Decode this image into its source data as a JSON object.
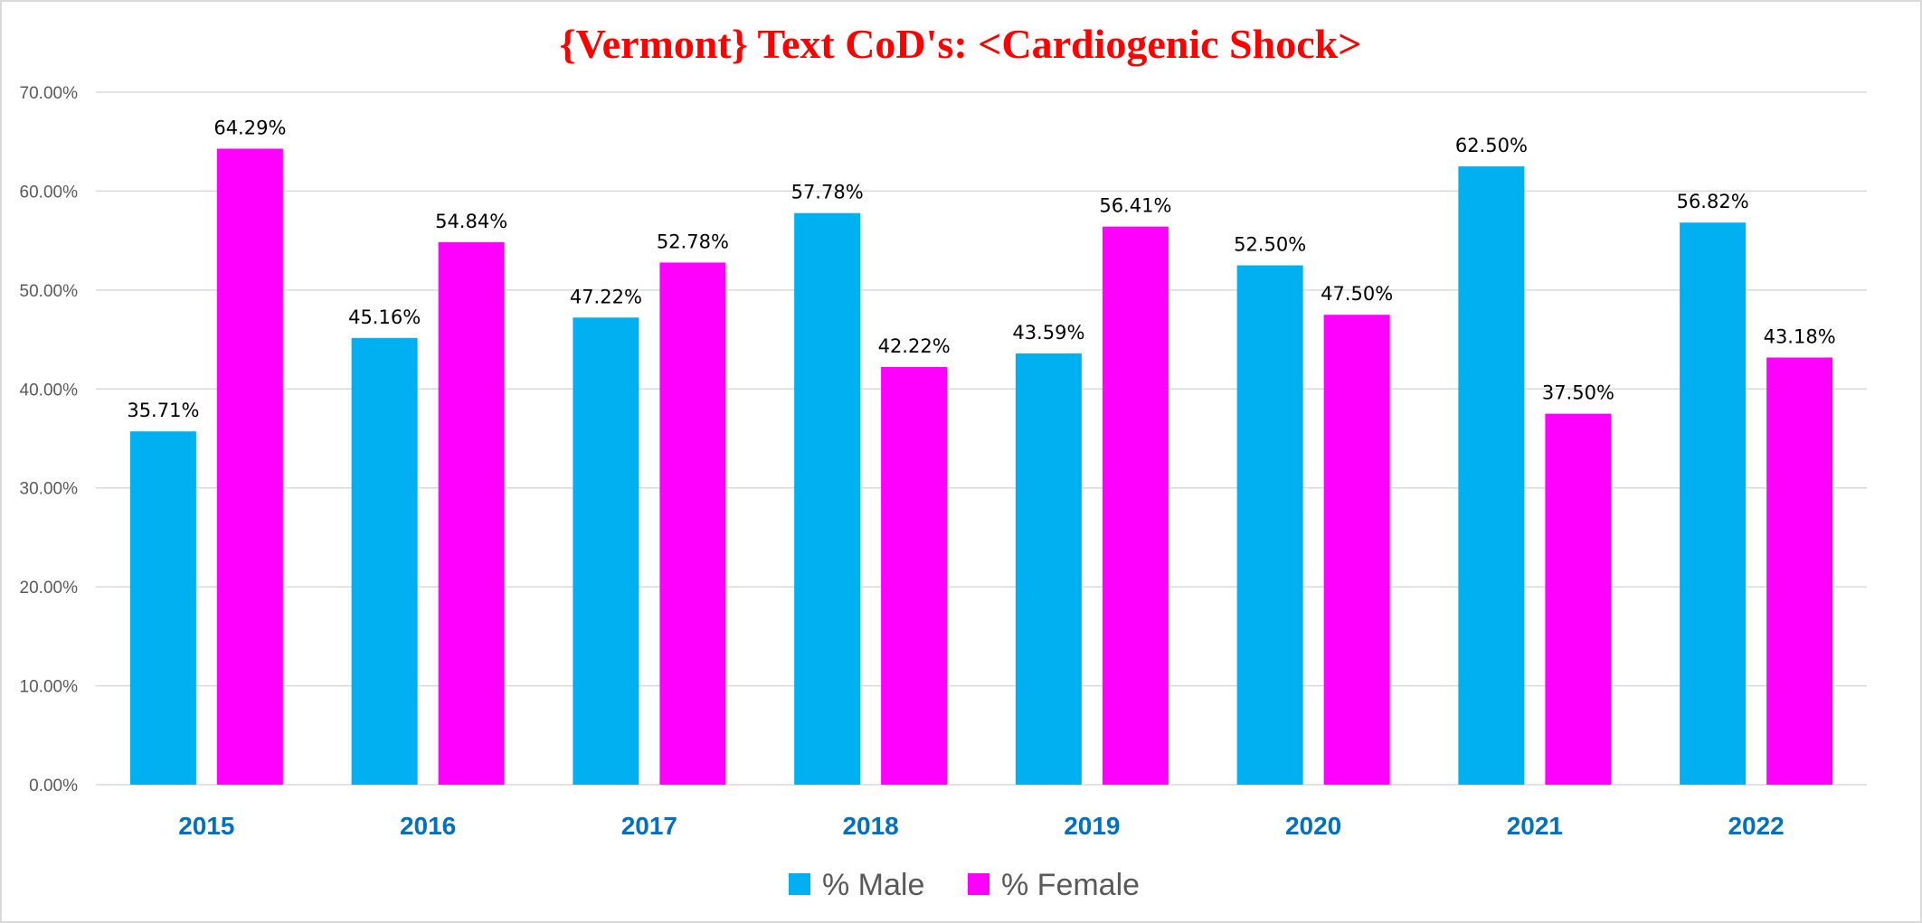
{
  "chart_data": {
    "type": "bar",
    "title": "{Vermont}  Text CoD's: <Cardiogenic Shock>",
    "xlabel": "",
    "ylabel": "",
    "categories": [
      "2015",
      "2016",
      "2017",
      "2018",
      "2019",
      "2020",
      "2021",
      "2022"
    ],
    "series": [
      {
        "name": "% Male",
        "color": "#00b0f0",
        "values": [
          35.71,
          45.16,
          47.22,
          57.78,
          43.59,
          52.5,
          62.5,
          56.82
        ],
        "labels": [
          "35.71%",
          "45.16%",
          "47.22%",
          "57.78%",
          "43.59%",
          "52.50%",
          "62.50%",
          "56.82%"
        ]
      },
      {
        "name": "% Female",
        "color": "#ff00ff",
        "values": [
          64.29,
          54.84,
          52.78,
          42.22,
          56.41,
          47.5,
          37.5,
          43.18
        ],
        "labels": [
          "64.29%",
          "54.84%",
          "52.78%",
          "42.22%",
          "56.41%",
          "47.50%",
          "37.50%",
          "43.18%"
        ]
      }
    ],
    "ylim": [
      0,
      70
    ],
    "yticks": [
      0,
      10,
      20,
      30,
      40,
      50,
      60,
      70
    ],
    "ytick_labels": [
      "0.00%",
      "10.00%",
      "20.00%",
      "30.00%",
      "40.00%",
      "50.00%",
      "60.00%",
      "70.00%"
    ],
    "grid": true,
    "legend_position": "bottom-center",
    "title_color": "#ff0000",
    "category_label_color": "#0070c0",
    "grid_color": "#d9d9d9"
  }
}
